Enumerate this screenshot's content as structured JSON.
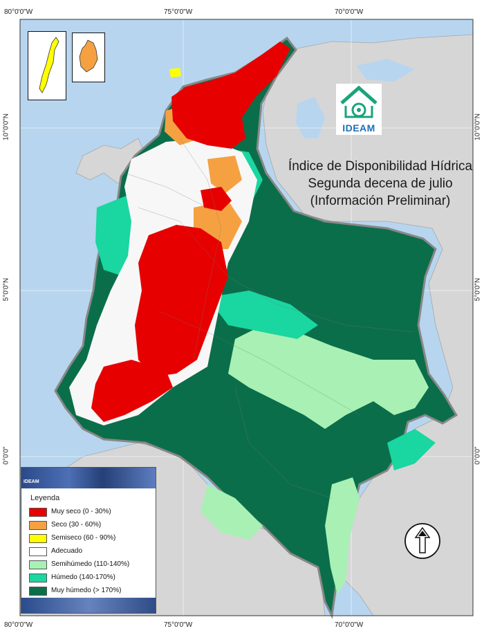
{
  "map": {
    "title_lines": [
      "Índice de Disponibilidad Hídrica",
      "Segunda decena de julio",
      "(Información Preliminar)"
    ],
    "logo_label": "IDEAM",
    "coords_top": [
      "80°0'0\"W",
      "75°0'0\"W",
      "70°0'0\"W"
    ],
    "coords_bottom": [
      "80°0'0\"W",
      "75°0'0\"W",
      "70°0'0\"W"
    ],
    "coords_left": [
      "10°0'0\"N",
      "5°0'0\"N",
      "0°0'0\""
    ],
    "coords_right": [
      "10°0'0\"N",
      "5°0'0\"N",
      "0°0'0\""
    ],
    "colors": {
      "ocean": "#b7d5ef",
      "land_neighbor": "#d6d6d6",
      "muy_seco": "#e60000",
      "seco": "#f5a142",
      "semiseco": "#ffff00",
      "adecuado": "#ffffff",
      "semihumedo": "#a8f0b4",
      "humedo": "#1ad6a0",
      "muy_humedo": "#0b6e4a"
    }
  },
  "legend": {
    "header_text": "IDEAM",
    "title": "Leyenda",
    "items": [
      {
        "label": "Muy seco (0 - 30%)",
        "color": "#e60000"
      },
      {
        "label": "Seco (30 - 60%)",
        "color": "#f5a142"
      },
      {
        "label": "Semiseco (60 - 90%)",
        "color": "#ffff00"
      },
      {
        "label": "Adecuado",
        "color": "#ffffff"
      },
      {
        "label": "Semihúmedo (110-140%)",
        "color": "#a8f0b4"
      },
      {
        "label": "Húmedo (140-170%)",
        "color": "#1ad6a0"
      },
      {
        "label": "Muy húmedo (> 170%)",
        "color": "#0b6e4a"
      }
    ]
  }
}
